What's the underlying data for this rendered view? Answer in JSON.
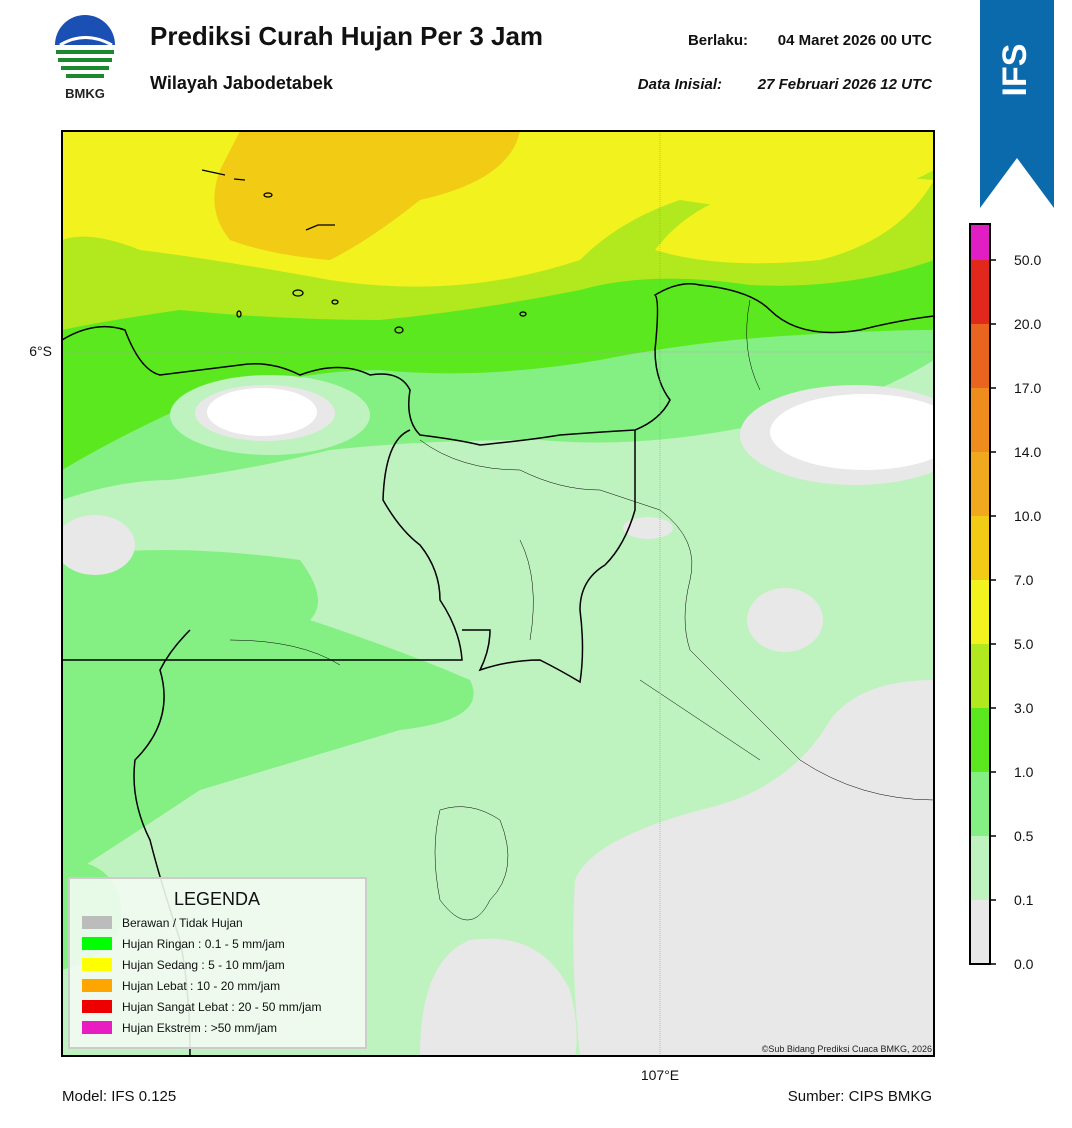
{
  "header": {
    "logo_text": "BMKG",
    "title": "Prediksi Curah Hujan Per 3 Jam",
    "subtitle": "Wilayah Jabodetabek",
    "valid_label": "Berlaku:",
    "valid_value": "04 Maret 2026 00 UTC",
    "init_label": "Data Inisial:",
    "init_value": "27 Februari 2026 12 UTC"
  },
  "badge": "IFS",
  "map": {
    "lat_label": "6°S",
    "lon_label": "107°E",
    "credit": "©Sub Bidang Prediksi Cuaca BMKG, 2026"
  },
  "legend": {
    "title": "LEGENDA",
    "items": [
      {
        "label": "Berawan / Tidak Hujan",
        "color": "#bcbcbc"
      },
      {
        "label": "Hujan Ringan : 0.1 - 5 mm/jam",
        "color": "#00ff00"
      },
      {
        "label": "Hujan Sedang : 5 - 10 mm/jam",
        "color": "#ffff00"
      },
      {
        "label": "Hujan Lebat : 10 - 20 mm/jam",
        "color": "#ffa500"
      },
      {
        "label": "Hujan Sangat Lebat : 20 - 50 mm/jam",
        "color": "#ee0000"
      },
      {
        "label": "Hujan Ekstrem : >50 mm/jam",
        "color": "#e81cc0"
      }
    ]
  },
  "colorbar": {
    "labels": [
      "0.0",
      "0.1",
      "0.5",
      "1.0",
      "3.0",
      "5.0",
      "7.0",
      "10.0",
      "14.0",
      "17.0",
      "20.0",
      "50.0"
    ],
    "colors": [
      "#e8e8e8",
      "#bef2be",
      "#84f084",
      "#5ce81e",
      "#b2e81e",
      "#f2f21e",
      "#f2cc14",
      "#f0a81e",
      "#ef8c1e",
      "#e9641e",
      "#e2281c",
      "#e01ec4"
    ]
  },
  "footer": {
    "model": "Model: IFS 0.125",
    "source": "Sumber: CIPS BMKG"
  }
}
